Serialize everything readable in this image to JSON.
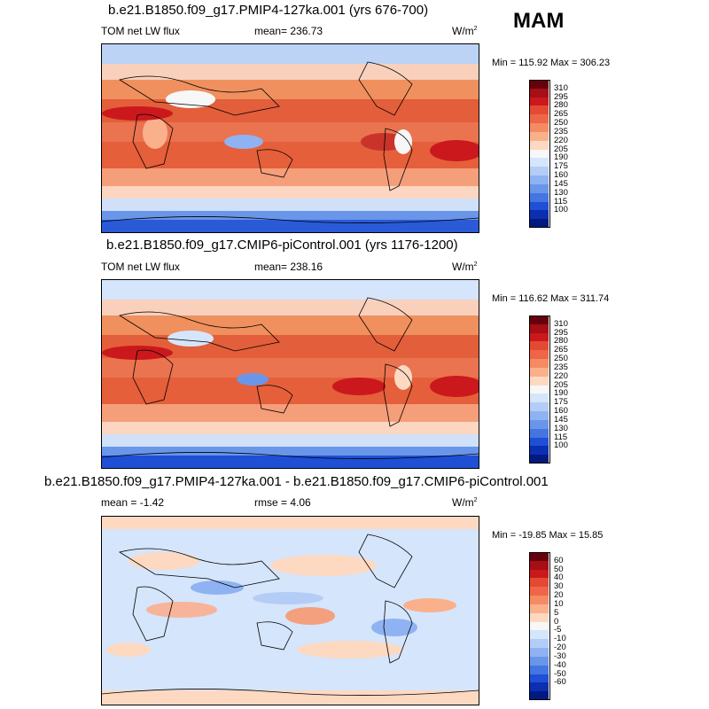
{
  "season": "MAM",
  "panels": [
    {
      "title": "b.e21.B1850.f09_g17.PMIP4-127ka.001 (yrs 676-700)",
      "left_label": "TOM net LW flux",
      "center_label": "mean= 236.73",
      "units": "W/m",
      "units_sup": "2",
      "minmax": "Min = 115.92 Max = 306.23",
      "colorbar": {
        "labels": [
          "310",
          "295",
          "280",
          "265",
          "250",
          "235",
          "220",
          "205",
          "190",
          "175",
          "160",
          "145",
          "130",
          "115",
          "100"
        ],
        "colors": [
          "#67000d",
          "#a50f15",
          "#cb181d",
          "#e34a33",
          "#ef6548",
          "#f48b62",
          "#fbb08c",
          "#fdd9c1",
          "#f7f7f7",
          "#d5e5fb",
          "#b4cdf7",
          "#8fb3f2",
          "#6a96ea",
          "#4575e0",
          "#1f4fd4",
          "#0b2fb0",
          "#001a80"
        ]
      }
    },
    {
      "title": "b.e21.B1850.f09_g17.CMIP6-piControl.001 (yrs 1176-1200)",
      "left_label": "TOM net LW flux",
      "center_label": "mean= 238.16",
      "units": "W/m",
      "units_sup": "2",
      "minmax": "Min = 116.62 Max = 311.74",
      "colorbar": {
        "labels": [
          "310",
          "295",
          "280",
          "265",
          "250",
          "235",
          "220",
          "205",
          "190",
          "175",
          "160",
          "145",
          "130",
          "115",
          "100"
        ],
        "colors": [
          "#67000d",
          "#a50f15",
          "#cb181d",
          "#e34a33",
          "#ef6548",
          "#f48b62",
          "#fbb08c",
          "#fdd9c1",
          "#f7f7f7",
          "#d5e5fb",
          "#b4cdf7",
          "#8fb3f2",
          "#6a96ea",
          "#4575e0",
          "#1f4fd4",
          "#0b2fb0",
          "#001a80"
        ]
      }
    },
    {
      "title": "b.e21.B1850.f09_g17.PMIP4-127ka.001 - b.e21.B1850.f09_g17.CMIP6-piControl.001",
      "left_label": "mean =  -1.42",
      "center_label": "rmse =   4.06",
      "units": "W/m",
      "units_sup": "2",
      "minmax": "Min = -19.85 Max =  15.85",
      "colorbar": {
        "labels": [
          "60",
          "50",
          "40",
          "30",
          "20",
          "10",
          "5",
          "0",
          "-5",
          "-10",
          "-20",
          "-30",
          "-40",
          "-50",
          "-60"
        ],
        "colors": [
          "#67000d",
          "#a50f15",
          "#cb181d",
          "#e34a33",
          "#ef6548",
          "#f48b62",
          "#fbb08c",
          "#fdd9c1",
          "#f7f7f7",
          "#d5e5fb",
          "#b4cdf7",
          "#8fb3f2",
          "#6a96ea",
          "#4575e0",
          "#1f4fd4",
          "#0b2fb0",
          "#001a80"
        ]
      }
    }
  ]
}
